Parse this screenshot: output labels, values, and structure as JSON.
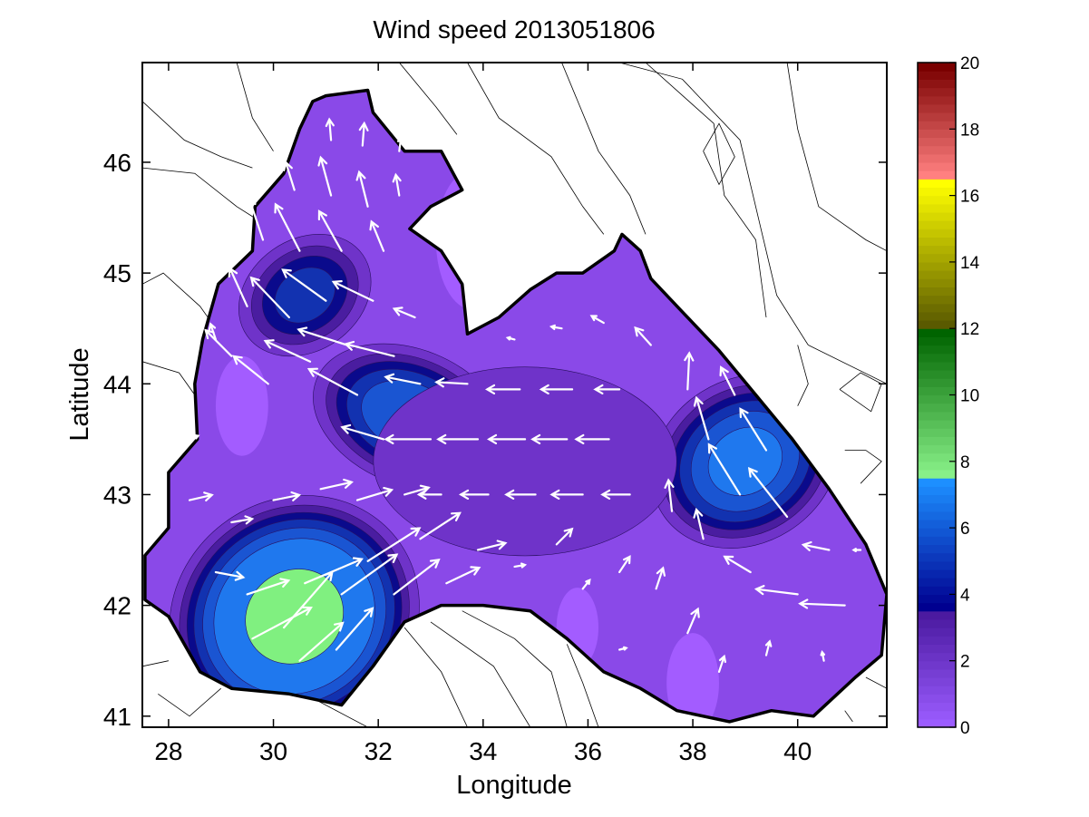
{
  "chart_data": {
    "type": "heatmap",
    "title": "Wind speed 2013051806",
    "xlabel": "Longitude",
    "ylabel": "Latitude",
    "xlim": [
      27.5,
      41.7
    ],
    "ylim": [
      40.9,
      46.9
    ],
    "xticks": [
      28,
      30,
      32,
      34,
      36,
      38,
      40
    ],
    "yticks": [
      41,
      42,
      43,
      44,
      45,
      46
    ],
    "grid": false,
    "legend": "none",
    "land_color": "#ffffff",
    "colorbar": {
      "position": "right",
      "range": [
        0,
        20
      ],
      "ticks": [
        0,
        2,
        4,
        6,
        8,
        10,
        12,
        14,
        16,
        18,
        20
      ],
      "bands": [
        {
          "from": 0,
          "to": 3.5,
          "colors": [
            "#9b5cff",
            "#4b1aa0"
          ]
        },
        {
          "from": 3.5,
          "to": 7.5,
          "colors": [
            "#000090",
            "#1d8fff"
          ]
        },
        {
          "from": 7.5,
          "to": 12,
          "colors": [
            "#88f088",
            "#006400"
          ]
        },
        {
          "from": 12,
          "to": 16.5,
          "colors": [
            "#5a5a00",
            "#ffff00"
          ]
        },
        {
          "from": 16.5,
          "to": 20,
          "colors": [
            "#ff8080",
            "#7a0000"
          ]
        }
      ]
    },
    "speed_levels": [
      {
        "min": 0,
        "color": "#a35cff"
      },
      {
        "min": 1,
        "color": "#8a49e8"
      },
      {
        "min": 2,
        "color": "#6f33c9"
      },
      {
        "min": 3,
        "color": "#4a1da0"
      },
      {
        "min": 3.7,
        "color": "#0a0a8c"
      },
      {
        "min": 4.3,
        "color": "#1232b0"
      },
      {
        "min": 5,
        "color": "#1a55d2"
      },
      {
        "min": 5.8,
        "color": "#1f78ee"
      },
      {
        "min": 7.5,
        "color": "#80f080"
      }
    ],
    "centers": [
      {
        "lon": 30.4,
        "lat": 41.9,
        "peak": 7.9,
        "rx": 2.6,
        "ry": 0.7,
        "angle": 35
      },
      {
        "lon": 39.0,
        "lat": 43.3,
        "peak": 5.9,
        "rx": 1.7,
        "ry": 0.6,
        "angle": -58
      },
      {
        "lon": 32.6,
        "lat": 43.7,
        "peak": 5.4,
        "rx": 2.1,
        "ry": 0.42,
        "angle": -22
      },
      {
        "lon": 30.6,
        "lat": 44.8,
        "peak": 4.3,
        "rx": 1.2,
        "ry": 0.45,
        "angle": -55
      },
      {
        "lon": 34.8,
        "lat": 43.3,
        "peak": 2.5,
        "rx": 3.8,
        "ry": 0.7,
        "angle": 0
      }
    ],
    "calm_spots": [
      {
        "lon": 29.4,
        "lat": 43.8,
        "r": 0.5
      },
      {
        "lon": 35.8,
        "lat": 41.8,
        "r": 0.4
      },
      {
        "lon": 38.0,
        "lat": 41.3,
        "r": 0.5
      },
      {
        "lon": 33.8,
        "lat": 45.3,
        "r": 0.7
      }
    ],
    "sea_outline": [
      [
        27.55,
        42.45
      ],
      [
        28.0,
        42.7
      ],
      [
        28.0,
        43.2
      ],
      [
        28.55,
        43.5
      ],
      [
        28.5,
        44.0
      ],
      [
        28.65,
        44.4
      ],
      [
        28.95,
        44.9
      ],
      [
        29.6,
        45.2
      ],
      [
        29.65,
        45.6
      ],
      [
        30.2,
        45.9
      ],
      [
        30.5,
        46.3
      ],
      [
        30.75,
        46.55
      ],
      [
        31.0,
        46.6
      ],
      [
        31.8,
        46.65
      ],
      [
        31.9,
        46.45
      ],
      [
        32.5,
        46.1
      ],
      [
        33.2,
        46.1
      ],
      [
        33.6,
        45.75
      ],
      [
        33.0,
        45.6
      ],
      [
        32.6,
        45.4
      ],
      [
        33.2,
        45.2
      ],
      [
        33.6,
        44.9
      ],
      [
        33.7,
        44.45
      ],
      [
        34.3,
        44.6
      ],
      [
        34.9,
        44.85
      ],
      [
        35.4,
        45.0
      ],
      [
        35.9,
        45.0
      ],
      [
        36.5,
        45.2
      ],
      [
        36.65,
        45.35
      ],
      [
        37.0,
        45.2
      ],
      [
        37.2,
        44.95
      ],
      [
        37.8,
        44.65
      ],
      [
        38.5,
        44.3
      ],
      [
        39.2,
        43.9
      ],
      [
        39.9,
        43.5
      ],
      [
        40.6,
        43.05
      ],
      [
        41.3,
        42.55
      ],
      [
        41.7,
        42.1
      ],
      [
        41.6,
        41.55
      ],
      [
        41.1,
        41.35
      ],
      [
        40.3,
        41.0
      ],
      [
        39.5,
        41.05
      ],
      [
        38.7,
        40.95
      ],
      [
        37.7,
        41.05
      ],
      [
        37.0,
        41.25
      ],
      [
        36.3,
        41.4
      ],
      [
        35.6,
        41.7
      ],
      [
        34.9,
        41.95
      ],
      [
        34.0,
        42.0
      ],
      [
        33.2,
        42.0
      ],
      [
        32.5,
        41.85
      ],
      [
        31.9,
        41.45
      ],
      [
        31.3,
        41.1
      ],
      [
        30.3,
        41.2
      ],
      [
        29.2,
        41.25
      ],
      [
        28.6,
        41.4
      ],
      [
        28.0,
        41.9
      ],
      [
        27.55,
        42.05
      ]
    ],
    "vectors": [
      {
        "lon": 28.9,
        "lat": 42.3,
        "u": 1.6,
        "v": -0.3
      },
      {
        "lon": 29.5,
        "lat": 42.1,
        "u": 2.4,
        "v": 0.8
      },
      {
        "lon": 29.6,
        "lat": 41.7,
        "u": 3.4,
        "v": 1.8
      },
      {
        "lon": 30.2,
        "lat": 41.8,
        "u": 2.8,
        "v": 3.2
      },
      {
        "lon": 30.5,
        "lat": 41.5,
        "u": 2.5,
        "v": 2.2
      },
      {
        "lon": 30.6,
        "lat": 42.2,
        "u": 3.3,
        "v": 1.4
      },
      {
        "lon": 31.2,
        "lat": 41.6,
        "u": 2.1,
        "v": 2.4
      },
      {
        "lon": 31.3,
        "lat": 42.1,
        "u": 3.2,
        "v": 2.3
      },
      {
        "lon": 31.8,
        "lat": 42.4,
        "u": 3.0,
        "v": 1.9
      },
      {
        "lon": 32.3,
        "lat": 42.1,
        "u": 2.6,
        "v": 2.0
      },
      {
        "lon": 32.8,
        "lat": 42.6,
        "u": 2.3,
        "v": 1.5
      },
      {
        "lon": 33.3,
        "lat": 42.2,
        "u": 1.9,
        "v": 0.9
      },
      {
        "lon": 29.2,
        "lat": 42.75,
        "u": 1.2,
        "v": 0.2
      },
      {
        "lon": 30.0,
        "lat": 42.95,
        "u": 1.5,
        "v": 0.3
      },
      {
        "lon": 30.9,
        "lat": 43.05,
        "u": 1.8,
        "v": 0.4
      },
      {
        "lon": 31.6,
        "lat": 42.95,
        "u": 2.0,
        "v": 0.6
      },
      {
        "lon": 32.5,
        "lat": 43.0,
        "u": 1.4,
        "v": 0.4
      },
      {
        "lon": 28.4,
        "lat": 42.95,
        "u": 1.3,
        "v": 0.3
      },
      {
        "lon": 33.9,
        "lat": 42.5,
        "u": 1.6,
        "v": 0.4
      },
      {
        "lon": 34.6,
        "lat": 42.35,
        "u": 0.6,
        "v": 0.1
      },
      {
        "lon": 35.4,
        "lat": 42.55,
        "u": 0.9,
        "v": 0.9
      },
      {
        "lon": 35.9,
        "lat": 42.15,
        "u": 0.4,
        "v": 0.5
      },
      {
        "lon": 36.6,
        "lat": 42.3,
        "u": 0.6,
        "v": 0.9
      },
      {
        "lon": 37.3,
        "lat": 42.15,
        "u": 0.4,
        "v": 1.2
      },
      {
        "lon": 36.6,
        "lat": 41.6,
        "u": 0.4,
        "v": 0.1
      },
      {
        "lon": 37.9,
        "lat": 41.75,
        "u": 0.6,
        "v": 1.4
      },
      {
        "lon": 38.5,
        "lat": 41.4,
        "u": 0.3,
        "v": 0.9
      },
      {
        "lon": 39.4,
        "lat": 41.55,
        "u": 0.2,
        "v": 0.8
      },
      {
        "lon": 40.5,
        "lat": 41.5,
        "u": -0.1,
        "v": 0.5
      },
      {
        "lon": 32.1,
        "lat": 43.5,
        "u": -2.4,
        "v": 0.7
      },
      {
        "lon": 33.0,
        "lat": 43.5,
        "u": -2.6,
        "v": 0.0
      },
      {
        "lon": 33.9,
        "lat": 43.5,
        "u": -2.3,
        "v": 0.0
      },
      {
        "lon": 34.8,
        "lat": 43.5,
        "u": -2.1,
        "v": 0.0
      },
      {
        "lon": 35.6,
        "lat": 43.5,
        "u": -2.0,
        "v": 0.0
      },
      {
        "lon": 36.4,
        "lat": 43.5,
        "u": -1.9,
        "v": 0.0
      },
      {
        "lon": 33.2,
        "lat": 43.0,
        "u": -1.3,
        "v": 0.0
      },
      {
        "lon": 34.1,
        "lat": 43.0,
        "u": -1.6,
        "v": 0.0
      },
      {
        "lon": 35.0,
        "lat": 43.0,
        "u": -1.7,
        "v": 0.0
      },
      {
        "lon": 35.9,
        "lat": 43.0,
        "u": -1.8,
        "v": 0.0
      },
      {
        "lon": 36.8,
        "lat": 43.0,
        "u": -1.6,
        "v": 0.0
      },
      {
        "lon": 32.8,
        "lat": 44.0,
        "u": -2.0,
        "v": 0.4
      },
      {
        "lon": 33.7,
        "lat": 44.0,
        "u": -1.8,
        "v": 0.1
      },
      {
        "lon": 34.7,
        "lat": 43.95,
        "u": -1.9,
        "v": 0.0
      },
      {
        "lon": 35.7,
        "lat": 43.95,
        "u": -1.8,
        "v": 0.0
      },
      {
        "lon": 36.6,
        "lat": 43.95,
        "u": -1.4,
        "v": 0.0
      },
      {
        "lon": 29.2,
        "lat": 44.25,
        "u": -1.5,
        "v": 1.5
      },
      {
        "lon": 29.9,
        "lat": 44.0,
        "u": -2.0,
        "v": 1.6
      },
      {
        "lon": 30.7,
        "lat": 44.2,
        "u": -2.6,
        "v": 1.2
      },
      {
        "lon": 31.6,
        "lat": 43.9,
        "u": -2.8,
        "v": 1.5
      },
      {
        "lon": 31.4,
        "lat": 44.35,
        "u": -2.8,
        "v": 0.9
      },
      {
        "lon": 32.3,
        "lat": 44.25,
        "u": -2.8,
        "v": 0.7
      },
      {
        "lon": 29.5,
        "lat": 44.7,
        "u": -1.0,
        "v": 2.2
      },
      {
        "lon": 30.3,
        "lat": 44.6,
        "u": -2.2,
        "v": 2.3
      },
      {
        "lon": 31.0,
        "lat": 44.75,
        "u": -2.5,
        "v": 1.8
      },
      {
        "lon": 31.9,
        "lat": 44.75,
        "u": -2.3,
        "v": 1.1
      },
      {
        "lon": 32.7,
        "lat": 44.6,
        "u": -1.2,
        "v": 0.5
      },
      {
        "lon": 29.8,
        "lat": 45.3,
        "u": -0.8,
        "v": 2.4
      },
      {
        "lon": 30.5,
        "lat": 45.2,
        "u": -1.4,
        "v": 2.7
      },
      {
        "lon": 31.3,
        "lat": 45.2,
        "u": -1.3,
        "v": 2.3
      },
      {
        "lon": 32.1,
        "lat": 45.2,
        "u": -0.7,
        "v": 1.7
      },
      {
        "lon": 30.4,
        "lat": 45.75,
        "u": -0.5,
        "v": 1.6
      },
      {
        "lon": 31.1,
        "lat": 45.7,
        "u": -0.6,
        "v": 2.2
      },
      {
        "lon": 31.8,
        "lat": 45.6,
        "u": -0.5,
        "v": 2.0
      },
      {
        "lon": 32.4,
        "lat": 45.7,
        "u": -0.2,
        "v": 1.2
      },
      {
        "lon": 31.1,
        "lat": 46.2,
        "u": -0.1,
        "v": 1.2
      },
      {
        "lon": 31.7,
        "lat": 46.15,
        "u": 0.1,
        "v": 1.3
      },
      {
        "lon": 32.4,
        "lat": 46.1,
        "u": 0.1,
        "v": 0.8
      },
      {
        "lon": 34.6,
        "lat": 44.4,
        "u": -0.4,
        "v": 0.1
      },
      {
        "lon": 35.5,
        "lat": 44.5,
        "u": -0.6,
        "v": 0.1
      },
      {
        "lon": 36.3,
        "lat": 44.55,
        "u": -0.7,
        "v": 0.4
      },
      {
        "lon": 37.2,
        "lat": 44.35,
        "u": -0.9,
        "v": 1.0
      },
      {
        "lon": 37.9,
        "lat": 43.95,
        "u": 0.1,
        "v": 2.1
      },
      {
        "lon": 38.3,
        "lat": 43.5,
        "u": -0.7,
        "v": 2.4
      },
      {
        "lon": 38.8,
        "lat": 43.9,
        "u": -0.8,
        "v": 1.6
      },
      {
        "lon": 38.9,
        "lat": 43.0,
        "u": -1.8,
        "v": 2.9
      },
      {
        "lon": 39.4,
        "lat": 43.4,
        "u": -1.5,
        "v": 2.4
      },
      {
        "lon": 39.8,
        "lat": 42.8,
        "u": -2.2,
        "v": 2.8
      },
      {
        "lon": 38.2,
        "lat": 42.6,
        "u": -0.4,
        "v": 1.7
      },
      {
        "lon": 37.6,
        "lat": 42.85,
        "u": -0.2,
        "v": 1.8
      },
      {
        "lon": 39.1,
        "lat": 42.3,
        "u": -1.5,
        "v": 0.9
      },
      {
        "lon": 40.0,
        "lat": 42.1,
        "u": -2.4,
        "v": 0.3
      },
      {
        "lon": 40.9,
        "lat": 42.0,
        "u": -2.6,
        "v": 0.1
      },
      {
        "lon": 40.6,
        "lat": 42.5,
        "u": -1.5,
        "v": 0.3
      },
      {
        "lon": 41.2,
        "lat": 42.5,
        "u": -0.4,
        "v": 0.0
      },
      {
        "lon": 28.4,
        "lat": 43.5,
        "u": 0.5,
        "v": 0.2
      },
      {
        "lon": 28.9,
        "lat": 44.4,
        "u": -0.3,
        "v": 0.9
      }
    ],
    "land_contours": [
      [
        [
          27.5,
          46.55
        ],
        [
          28.3,
          46.2
        ],
        [
          29.0,
          46.05
        ],
        [
          29.6,
          45.95
        ]
      ],
      [
        [
          27.5,
          45.95
        ],
        [
          28.5,
          45.9
        ],
        [
          29.3,
          45.6
        ],
        [
          29.8,
          45.45
        ]
      ],
      [
        [
          27.5,
          44.9
        ],
        [
          27.9,
          45.0
        ],
        [
          28.6,
          44.7
        ],
        [
          28.9,
          44.5
        ]
      ],
      [
        [
          27.5,
          44.2
        ],
        [
          28.2,
          44.1
        ],
        [
          28.5,
          43.9
        ]
      ],
      [
        [
          29.3,
          46.9
        ],
        [
          29.6,
          46.4
        ],
        [
          30.0,
          46.1
        ]
      ],
      [
        [
          32.4,
          46.9
        ],
        [
          33.1,
          46.5
        ],
        [
          33.5,
          46.25
        ]
      ],
      [
        [
          33.7,
          46.9
        ],
        [
          34.3,
          46.4
        ],
        [
          35.3,
          46.05
        ],
        [
          35.9,
          45.6
        ],
        [
          36.3,
          45.35
        ]
      ],
      [
        [
          35.5,
          46.9
        ],
        [
          36.2,
          46.1
        ],
        [
          36.8,
          45.7
        ],
        [
          37.1,
          45.35
        ]
      ],
      [
        [
          36.6,
          46.9
        ],
        [
          37.8,
          46.75
        ],
        [
          38.9,
          46.2
        ],
        [
          39.3,
          45.4
        ],
        [
          39.6,
          44.8
        ],
        [
          40.2,
          44.35
        ],
        [
          41.7,
          44.0
        ]
      ],
      [
        [
          37.1,
          46.9
        ],
        [
          38.4,
          46.35
        ],
        [
          38.6,
          45.7
        ],
        [
          39.2,
          45.3
        ],
        [
          39.4,
          44.6
        ]
      ],
      [
        [
          39.8,
          46.9
        ],
        [
          40.0,
          46.3
        ],
        [
          40.4,
          45.6
        ],
        [
          41.3,
          45.3
        ],
        [
          41.7,
          45.2
        ]
      ],
      [
        [
          38.2,
          46.1
        ],
        [
          38.5,
          46.35
        ],
        [
          38.8,
          46.05
        ],
        [
          38.5,
          45.8
        ],
        [
          38.2,
          46.1
        ]
      ],
      [
        [
          40.0,
          44.35
        ],
        [
          40.2,
          44.0
        ],
        [
          40.0,
          43.8
        ]
      ],
      [
        [
          40.8,
          43.95
        ],
        [
          41.2,
          44.1
        ],
        [
          41.6,
          44.0
        ],
        [
          41.4,
          43.75
        ],
        [
          40.8,
          43.95
        ]
      ],
      [
        [
          40.9,
          43.4
        ],
        [
          41.3,
          43.4
        ],
        [
          41.6,
          43.3
        ],
        [
          41.2,
          43.1
        ]
      ],
      [
        [
          27.8,
          41.2
        ],
        [
          28.4,
          41.0
        ],
        [
          29.0,
          41.25
        ]
      ],
      [
        [
          27.5,
          41.45
        ],
        [
          28.0,
          41.5
        ]
      ],
      [
        [
          30.8,
          41.15
        ],
        [
          31.8,
          40.9
        ]
      ],
      [
        [
          32.5,
          41.8
        ],
        [
          33.2,
          41.4
        ],
        [
          33.7,
          40.9
        ]
      ],
      [
        [
          33.0,
          41.85
        ],
        [
          34.2,
          41.45
        ],
        [
          34.9,
          40.9
        ]
      ],
      [
        [
          33.6,
          41.95
        ],
        [
          34.6,
          41.7
        ],
        [
          35.3,
          41.4
        ],
        [
          35.6,
          40.9
        ]
      ],
      [
        [
          35.6,
          41.65
        ],
        [
          35.9,
          41.3
        ],
        [
          36.2,
          40.9
        ]
      ],
      [
        [
          41.3,
          41.35
        ],
        [
          41.7,
          41.25
        ]
      ],
      [
        [
          40.9,
          41.05
        ],
        [
          41.05,
          40.95
        ]
      ]
    ]
  }
}
